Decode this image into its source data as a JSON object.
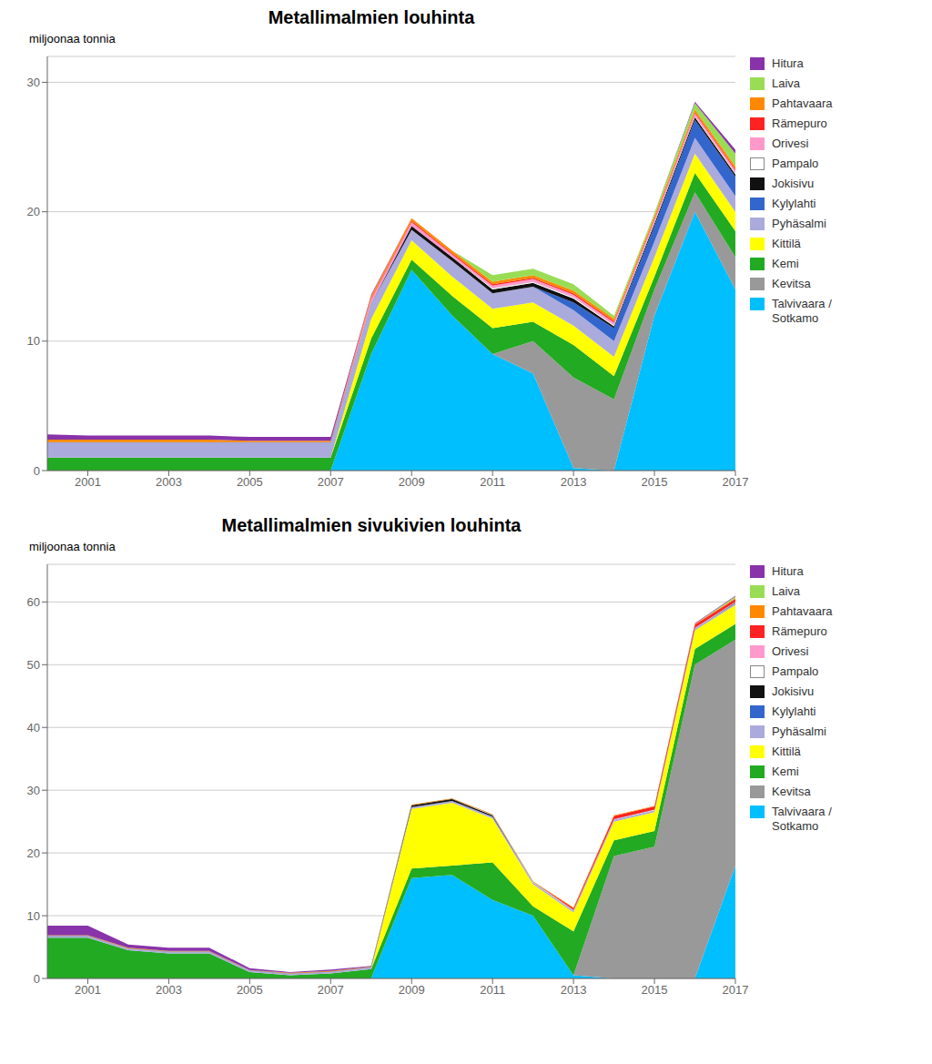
{
  "chart_data": [
    {
      "type": "area",
      "title": "Metallimalmien louhinta",
      "ylabel": "miljoonaa tonnia",
      "stacked": true,
      "grid": "y",
      "legend": "right",
      "x": [
        2000,
        2001,
        2002,
        2003,
        2004,
        2005,
        2006,
        2007,
        2008,
        2009,
        2010,
        2011,
        2012,
        2013,
        2014,
        2015,
        2016,
        2017
      ],
      "xlim": [
        2000,
        2017
      ],
      "xticks": [
        2001,
        2003,
        2005,
        2007,
        2009,
        2011,
        2013,
        2015,
        2017
      ],
      "ylim": [
        0,
        32
      ],
      "yticks": [
        0,
        10,
        20,
        30
      ],
      "series": [
        {
          "name": "Talvivaara /\nSotkamo",
          "color": "#00BFFF",
          "values": [
            0.0,
            0.0,
            0.0,
            0.0,
            0.0,
            0.0,
            0.0,
            0.0,
            9.0,
            15.5,
            12.0,
            9.0,
            7.5,
            0.2,
            0.0,
            12.0,
            20.0,
            14.0
          ]
        },
        {
          "name": "Kevitsa",
          "color": "#999999",
          "values": [
            0.0,
            0.0,
            0.0,
            0.0,
            0.0,
            0.0,
            0.0,
            0.0,
            0.0,
            0.0,
            0.0,
            0.0,
            2.5,
            7.0,
            5.5,
            2.0,
            1.5,
            2.5
          ]
        },
        {
          "name": "Kemi",
          "color": "#22AA22",
          "values": [
            1.0,
            1.0,
            1.0,
            1.0,
            1.0,
            1.0,
            1.0,
            1.0,
            1.2,
            0.8,
            1.5,
            2.0,
            1.5,
            2.5,
            1.8,
            1.0,
            1.5,
            2.0
          ]
        },
        {
          "name": "Kittilä",
          "color": "#FFFF00",
          "values": [
            0.0,
            0.0,
            0.0,
            0.0,
            0.0,
            0.0,
            0.0,
            0.0,
            1.5,
            1.5,
            1.5,
            1.5,
            1.5,
            1.5,
            1.5,
            1.5,
            1.5,
            1.5
          ]
        },
        {
          "name": "Pyhäsalmi",
          "color": "#AAAADD",
          "values": [
            1.2,
            1.2,
            1.2,
            1.2,
            1.2,
            1.2,
            1.2,
            1.2,
            1.2,
            0.8,
            1.2,
            1.2,
            1.2,
            1.2,
            1.2,
            1.2,
            1.2,
            1.2
          ]
        },
        {
          "name": "Kylylahti",
          "color": "#3366CC",
          "values": [
            0.0,
            0.0,
            0.0,
            0.0,
            0.0,
            0.0,
            0.0,
            0.0,
            0.0,
            0.0,
            0.0,
            0.0,
            0.0,
            0.6,
            1.0,
            1.2,
            1.4,
            1.5
          ]
        },
        {
          "name": "Jokisivu",
          "color": "#111111",
          "values": [
            0.0,
            0.0,
            0.0,
            0.0,
            0.0,
            0.0,
            0.0,
            0.0,
            0.0,
            0.3,
            0.3,
            0.3,
            0.3,
            0.3,
            0.15,
            0.2,
            0.2,
            0.2
          ]
        },
        {
          "name": "Pampalo",
          "color": "#FFFFFF",
          "values": [
            0.0,
            0.0,
            0.0,
            0.0,
            0.0,
            0.0,
            0.0,
            0.0,
            0.0,
            0.0,
            0.0,
            0.1,
            0.1,
            0.1,
            0.1,
            0.1,
            0.1,
            0.1
          ]
        },
        {
          "name": "Orivesi",
          "color": "#FF99CC",
          "values": [
            0.0,
            0.0,
            0.0,
            0.0,
            0.0,
            0.0,
            0.0,
            0.0,
            0.3,
            0.3,
            0.2,
            0.2,
            0.2,
            0.2,
            0.2,
            0.2,
            0.2,
            0.2
          ]
        },
        {
          "name": "Rämepuro",
          "color": "#FF2222",
          "values": [
            0.0,
            0.0,
            0.0,
            0.0,
            0.0,
            0.0,
            0.0,
            0.0,
            0.1,
            0.1,
            0.1,
            0.1,
            0.1,
            0.1,
            0.1,
            0.1,
            0.1,
            0.1
          ]
        },
        {
          "name": "Pahtavaara",
          "color": "#FF8800",
          "values": [
            0.2,
            0.2,
            0.2,
            0.2,
            0.2,
            0.1,
            0.1,
            0.1,
            0.2,
            0.2,
            0.2,
            0.2,
            0.2,
            0.2,
            0.2,
            0.2,
            0.2,
            0.2
          ]
        },
        {
          "name": "Laiva",
          "color": "#99DD55",
          "values": [
            0.0,
            0.0,
            0.0,
            0.0,
            0.0,
            0.0,
            0.0,
            0.0,
            0.0,
            0.0,
            0.0,
            0.5,
            0.5,
            0.5,
            0.2,
            0.2,
            0.5,
            1.0
          ]
        },
        {
          "name": "Hitura",
          "color": "#8833AA",
          "values": [
            0.4,
            0.3,
            0.3,
            0.3,
            0.3,
            0.3,
            0.3,
            0.3,
            0.1,
            0.0,
            0.0,
            0.0,
            0.0,
            0.0,
            0.0,
            0.0,
            0.1,
            0.3
          ]
        }
      ]
    },
    {
      "type": "area",
      "title": "Metallimalmien sivukivien louhinta",
      "ylabel": "miljoonaa tonnia",
      "stacked": true,
      "grid": "y",
      "legend": "right",
      "x": [
        2000,
        2001,
        2002,
        2003,
        2004,
        2005,
        2006,
        2007,
        2008,
        2009,
        2010,
        2011,
        2012,
        2013,
        2014,
        2015,
        2016,
        2017
      ],
      "xlim": [
        2000,
        2017
      ],
      "xticks": [
        2001,
        2003,
        2005,
        2007,
        2009,
        2011,
        2013,
        2015,
        2017
      ],
      "ylim": [
        0,
        66
      ],
      "yticks": [
        0,
        10,
        20,
        30,
        40,
        50,
        60
      ],
      "series": [
        {
          "name": "Talvivaara /\nSotkamo",
          "color": "#00BFFF",
          "values": [
            0.0,
            0.0,
            0.0,
            0.0,
            0.0,
            0.0,
            0.0,
            0.0,
            0.0,
            16.0,
            16.5,
            12.5,
            10.0,
            0.5,
            0.0,
            0.0,
            0.0,
            18.0
          ]
        },
        {
          "name": "Kevitsa",
          "color": "#999999",
          "values": [
            0.0,
            0.0,
            0.0,
            0.0,
            0.0,
            0.0,
            0.0,
            0.0,
            0.0,
            0.0,
            0.0,
            0.0,
            0.0,
            0.0,
            19.5,
            21.0,
            50.0,
            36.0
          ]
        },
        {
          "name": "Kemi",
          "color": "#22AA22",
          "values": [
            6.5,
            6.5,
            4.5,
            4.0,
            4.0,
            1.0,
            0.5,
            0.8,
            1.5,
            1.5,
            1.5,
            6.0,
            1.5,
            7.0,
            2.5,
            2.5,
            2.5,
            2.5
          ]
        },
        {
          "name": "Kittilä",
          "color": "#FFFF00",
          "values": [
            0.0,
            0.0,
            0.0,
            0.0,
            0.0,
            0.0,
            0.0,
            0.0,
            0.0,
            9.5,
            10.0,
            7.0,
            3.5,
            3.0,
            3.0,
            3.0,
            3.0,
            3.0
          ]
        },
        {
          "name": "Pyhäsalmi",
          "color": "#AAAADD",
          "values": [
            0.3,
            0.3,
            0.3,
            0.3,
            0.3,
            0.3,
            0.3,
            0.3,
            0.3,
            0.3,
            0.3,
            0.3,
            0.3,
            0.3,
            0.3,
            0.3,
            0.3,
            0.3
          ]
        },
        {
          "name": "Kylylahti",
          "color": "#3366CC",
          "values": [
            0.0,
            0.0,
            0.0,
            0.0,
            0.0,
            0.0,
            0.0,
            0.0,
            0.0,
            0.0,
            0.0,
            0.0,
            0.0,
            0.0,
            0.0,
            0.0,
            0.0,
            0.0
          ]
        },
        {
          "name": "Jokisivu",
          "color": "#111111",
          "values": [
            0.0,
            0.0,
            0.0,
            0.0,
            0.0,
            0.0,
            0.0,
            0.0,
            0.0,
            0.3,
            0.3,
            0.2,
            0.0,
            0.0,
            0.0,
            0.0,
            0.0,
            0.1
          ]
        },
        {
          "name": "Pampalo",
          "color": "#FFFFFF",
          "values": [
            0.0,
            0.0,
            0.0,
            0.0,
            0.0,
            0.0,
            0.0,
            0.0,
            0.0,
            0.0,
            0.0,
            0.1,
            0.1,
            0.1,
            0.1,
            0.1,
            0.1,
            0.1
          ]
        },
        {
          "name": "Orivesi",
          "color": "#FF99CC",
          "values": [
            0.0,
            0.0,
            0.0,
            0.0,
            0.0,
            0.0,
            0.0,
            0.0,
            0.0,
            0.0,
            0.0,
            0.0,
            0.0,
            0.0,
            0.0,
            0.0,
            0.0,
            0.0
          ]
        },
        {
          "name": "Rämepuro",
          "color": "#FF2222",
          "values": [
            0.0,
            0.0,
            0.0,
            0.0,
            0.0,
            0.0,
            0.0,
            0.0,
            0.0,
            0.0,
            0.0,
            0.0,
            0.0,
            0.3,
            0.5,
            0.5,
            0.5,
            0.5
          ]
        },
        {
          "name": "Pahtavaara",
          "color": "#FF8800",
          "values": [
            0.1,
            0.1,
            0.1,
            0.1,
            0.1,
            0.05,
            0.1,
            0.1,
            0.1,
            0.1,
            0.1,
            0.1,
            0.1,
            0.1,
            0.1,
            0.1,
            0.1,
            0.1
          ]
        },
        {
          "name": "Laiva",
          "color": "#99DD55",
          "values": [
            0.0,
            0.0,
            0.0,
            0.0,
            0.0,
            0.0,
            0.0,
            0.0,
            0.0,
            0.0,
            0.0,
            0.0,
            0.0,
            0.0,
            0.0,
            0.0,
            0.0,
            0.3
          ]
        },
        {
          "name": "Hitura",
          "color": "#8833AA",
          "values": [
            1.5,
            1.5,
            0.5,
            0.5,
            0.5,
            0.3,
            0.1,
            0.2,
            0.1,
            0.0,
            0.0,
            0.0,
            0.0,
            0.0,
            0.0,
            0.0,
            0.1,
            0.1
          ]
        }
      ]
    }
  ]
}
